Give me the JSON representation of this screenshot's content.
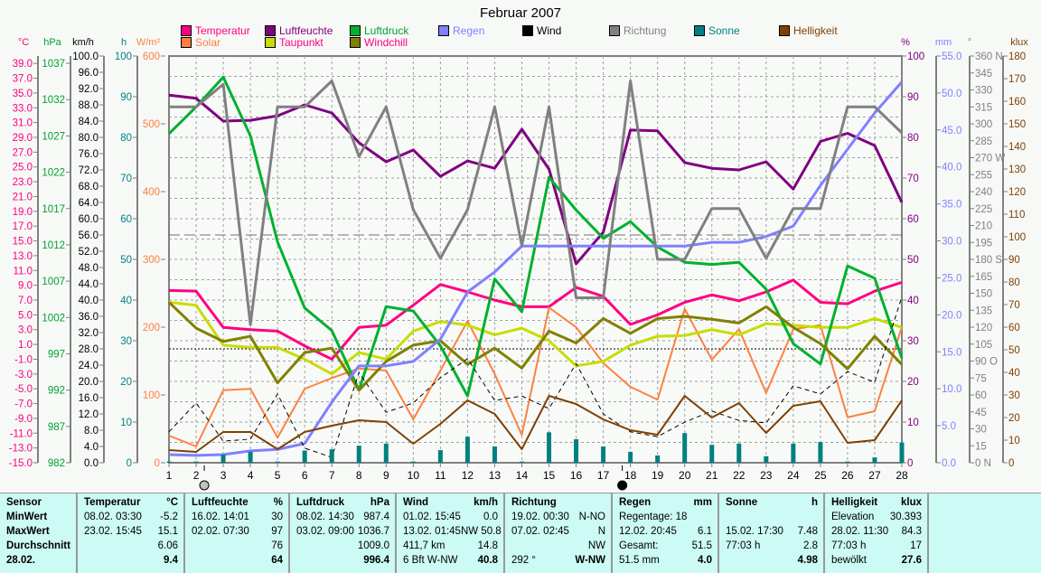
{
  "chart_data": {
    "type": "line",
    "title": "Februar 2007",
    "x": [
      1,
      2,
      3,
      4,
      5,
      6,
      7,
      8,
      9,
      10,
      11,
      12,
      13,
      14,
      15,
      16,
      17,
      18,
      19,
      20,
      21,
      22,
      23,
      24,
      25,
      26,
      27,
      28
    ],
    "axes": [
      {
        "id": "c",
        "unit": "°C",
        "color": "#ff0080",
        "range": [
          -15,
          40
        ],
        "ticks": [
          "39.0",
          "37.0",
          "35.0",
          "33.0",
          "31.0",
          "29.0",
          "27.0",
          "25.0",
          "23.0",
          "21.0",
          "19.0",
          "17.0",
          "15.0",
          "13.0",
          "11.0",
          "9.0",
          "7.0",
          "5.0",
          "3.0",
          "1.0",
          "-1.0",
          "-3.0",
          "-5.0",
          "-7.0",
          "-9.0",
          "-11.0",
          "-13.0",
          "-15.0"
        ]
      },
      {
        "id": "hpa",
        "unit": "hPa",
        "color": "#00a030",
        "range": [
          982,
          1038
        ],
        "ticks": [
          "1037",
          "1032",
          "1027",
          "1022",
          "1017",
          "1012",
          "1007",
          "1002",
          "997",
          "992",
          "987",
          "982"
        ]
      },
      {
        "id": "kmh",
        "unit": "km/h",
        "color": "#000000",
        "range": [
          0,
          100
        ],
        "ticks": [
          "100.0",
          "96.0",
          "92.0",
          "88.0",
          "84.0",
          "80.0",
          "76.0",
          "72.0",
          "68.0",
          "64.0",
          "60.0",
          "56.0",
          "52.0",
          "48.0",
          "44.0",
          "40.0",
          "36.0",
          "32.0",
          "28.0",
          "24.0",
          "20.0",
          "16.0",
          "12.0",
          "8.0",
          "4.0",
          "0.0"
        ]
      },
      {
        "id": "h",
        "unit": "h",
        "color": "#008080",
        "range": [
          0,
          100
        ],
        "ticks": [
          "100",
          "90",
          "80",
          "70",
          "60",
          "50",
          "40",
          "30",
          "20",
          "10",
          "0"
        ]
      },
      {
        "id": "wm",
        "unit": "W/m²",
        "color": "#ff8040",
        "range": [
          0,
          600
        ],
        "ticks": [
          "600",
          "500",
          "400",
          "300",
          "200",
          "100",
          "0"
        ]
      },
      {
        "id": "pct",
        "unit": "%",
        "color": "#800080",
        "range": [
          0,
          100
        ],
        "ticks": [
          "100",
          "90",
          "80",
          "70",
          "60",
          "50",
          "40",
          "30",
          "20",
          "10",
          "0"
        ]
      },
      {
        "id": "mm",
        "unit": "mm",
        "color": "#8080ff",
        "range": [
          0,
          55
        ],
        "ticks": [
          "55.0",
          "50.0",
          "45.0",
          "40.0",
          "35.0",
          "30.0",
          "25.0",
          "20.0",
          "15.0",
          "10.0",
          "5.0",
          "0.0"
        ]
      },
      {
        "id": "deg",
        "unit": "°",
        "color": "#808080",
        "range": [
          0,
          360
        ],
        "ticks": [
          "360 N",
          "345",
          "330",
          "315",
          "300",
          "285",
          "270 W",
          "255",
          "240",
          "225",
          "210",
          "195",
          "180 S",
          "165",
          "150",
          "135",
          "120",
          "105",
          "90 O",
          "75",
          "60",
          "45",
          "30",
          "15",
          "0 N"
        ]
      },
      {
        "id": "klux",
        "unit": "klux",
        "color": "#804000",
        "range": [
          0,
          180
        ],
        "ticks": [
          "180",
          "170",
          "160",
          "150",
          "140",
          "130",
          "120",
          "110",
          "100",
          "90",
          "80",
          "70",
          "60",
          "50",
          "40",
          "30",
          "20",
          "10",
          "0"
        ]
      }
    ],
    "series": [
      {
        "name": "Temperatur",
        "axis": "c",
        "color": "#ff0080",
        "width": 3,
        "values": [
          8.3,
          8.2,
          3.3,
          3.0,
          2.8,
          0.8,
          -1.0,
          3.3,
          3.6,
          6.3,
          9.1,
          8.1,
          7.0,
          6.1,
          6.1,
          8.7,
          7.5,
          3.7,
          5.0,
          6.7,
          7.7,
          6.9,
          8.1,
          9.7,
          6.7,
          6.5,
          8.2,
          9.4
        ]
      },
      {
        "name": "Solar",
        "axis": "wm",
        "color": "#ff8040",
        "width": 2,
        "values": [
          40,
          24,
          107,
          109,
          37,
          109,
          125,
          139,
          136,
          64,
          136,
          209,
          131,
          41,
          229,
          200,
          147,
          112,
          93,
          227,
          152,
          197,
          103,
          197,
          203,
          67,
          76,
          200
        ]
      },
      {
        "name": "Luftfeuchte",
        "axis": "pct",
        "color": "#800080",
        "width": 3,
        "values": [
          90.4,
          89.6,
          84,
          84.2,
          85.3,
          88,
          86,
          78.7,
          74,
          76.9,
          70.4,
          74.2,
          72.4,
          82,
          72.2,
          48.9,
          56.7,
          81.8,
          81.6,
          73.8,
          72.4,
          72,
          74,
          67.3,
          79,
          81,
          78,
          64
        ]
      },
      {
        "name": "Taupunkt",
        "axis": "c",
        "color": "#c8dc00",
        "width": 3,
        "values": [
          6.7,
          6.3,
          0.9,
          0.6,
          0.6,
          -1.0,
          -3.0,
          -0.1,
          -1.0,
          2.8,
          4.1,
          3.6,
          2.3,
          3.2,
          1.5,
          -1.9,
          -1.3,
          0.9,
          2.1,
          2.2,
          3.0,
          2.3,
          3.8,
          3.6,
          3.3,
          3.3,
          4.5,
          3.3
        ]
      },
      {
        "name": "Luftdruck",
        "axis": "hpa",
        "color": "#00b030",
        "width": 3,
        "values": [
          1027.3,
          1031,
          1035.1,
          1027,
          1012.4,
          1003.3,
          1000.2,
          992,
          1003.5,
          1002.9,
          998.1,
          991.2,
          1007.3,
          1002.8,
          1021.3,
          1016.8,
          1012.9,
          1015.2,
          1011.7,
          1009.6,
          1009.3,
          1009.6,
          1005.9,
          998.4,
          995.6,
          1009.1,
          1007.4,
          996.4
        ]
      },
      {
        "name": "Windchill",
        "axis": "c",
        "color": "#808000",
        "width": 3,
        "values": [
          6.7,
          3.2,
          1.4,
          2.1,
          -4.2,
          -0.1,
          0.5,
          -5.2,
          -1.3,
          0.9,
          1.5,
          -1.7,
          0.5,
          -2.2,
          2.8,
          1.2,
          4.5,
          2.5,
          4.5,
          4.8,
          4.4,
          3.9,
          6.1,
          3.3,
          1.1,
          -2.3,
          2.1,
          -1.7
        ]
      },
      {
        "name": "Regen",
        "axis": "mm",
        "color": "#8080ff",
        "width": 3,
        "values": [
          1.1,
          1.0,
          1.1,
          1.6,
          1.8,
          2.6,
          8.2,
          13.1,
          13.1,
          13.7,
          16.7,
          23.1,
          25.8,
          29.3,
          29.3,
          29.3,
          29.3,
          29.3,
          29.3,
          29.3,
          29.8,
          29.8,
          30.6,
          32,
          37.5,
          42.4,
          47.3,
          51.5
        ]
      },
      {
        "name": "Wind",
        "axis": "kmh",
        "color": "#000000",
        "width": 1,
        "dash": "5,4",
        "values": [
          7.6,
          14.7,
          5.3,
          5.8,
          16.9,
          3.6,
          1.3,
          22.2,
          12.4,
          14.7,
          20.9,
          25.6,
          15.3,
          16.4,
          13.3,
          24.4,
          12,
          7.6,
          6.4,
          10,
          12.7,
          10.4,
          9.8,
          18.9,
          16.9,
          22.4,
          19.8,
          40.8
        ]
      },
      {
        "name": "Richtung",
        "axis": "deg",
        "color": "#808080",
        "width": 3,
        "values": [
          315,
          315,
          335,
          122,
          315,
          315,
          338,
          271,
          315,
          224,
          181,
          224,
          315,
          192,
          315,
          146,
          146,
          338,
          180,
          180,
          225,
          225,
          181,
          225,
          225,
          315,
          315,
          292
        ]
      },
      {
        "name": "Sonne",
        "axis": "h",
        "color": "#008080",
        "bar": true,
        "values": [
          0.3,
          0.3,
          2,
          2.7,
          0.3,
          3,
          3.3,
          4.2,
          4.7,
          0.3,
          3.1,
          6.4,
          4,
          0.3,
          7.48,
          5.8,
          4,
          2.7,
          1.8,
          7.3,
          4.4,
          4.7,
          1.6,
          4.7,
          5.1,
          0.3,
          1.3,
          5
        ]
      },
      {
        "name": "Helligkeit",
        "axis": "klux",
        "color": "#804000",
        "width": 2,
        "values": [
          5.6,
          4.8,
          13.6,
          13.6,
          6,
          13.6,
          16.4,
          18.8,
          18,
          8.4,
          17.2,
          27.6,
          21.6,
          6,
          29.6,
          26,
          19.2,
          14.4,
          12.4,
          29.6,
          20,
          26.4,
          13.2,
          25.2,
          27.2,
          8.8,
          10,
          27.6
        ]
      }
    ],
    "reference_lines": [
      {
        "axis": "pct",
        "value": 56,
        "style": "long-dash"
      },
      {
        "axis": "pct",
        "value": 28,
        "style": "dotted"
      }
    ],
    "moon_phases": [
      {
        "day": 2.3,
        "phase": "full"
      },
      {
        "day": 17.7,
        "phase": "new"
      }
    ],
    "grid": true
  },
  "legend": [
    {
      "label": "Temperatur",
      "color": "#ff0080",
      "text": "#ff0080"
    },
    {
      "label": "Solar",
      "color": "#ff8040",
      "text": "#ff8040"
    },
    {
      "label": "Luftfeuchte",
      "color": "#800080",
      "text": "#800080"
    },
    {
      "label": "Taupunkt",
      "color": "#c8dc00",
      "text": "#ff0080"
    },
    {
      "label": "Luftdruck",
      "color": "#00b030",
      "text": "#00a030"
    },
    {
      "label": "Windchill",
      "color": "#808000",
      "text": "#ff0080"
    },
    {
      "label": "Regen",
      "color": "#8080ff",
      "text": "#8080ff"
    },
    {
      "label": "Wind",
      "color": "#000000",
      "text": "#000000"
    },
    {
      "label": "Richtung",
      "color": "#808080",
      "text": "#808080"
    },
    {
      "label": "Sonne",
      "color": "#008080",
      "text": "#008080"
    },
    {
      "label": "Helligkeit",
      "color": "#804000",
      "text": "#804000"
    }
  ],
  "table": {
    "sensor": [
      "Sensor",
      "MinWert",
      "MaxWert",
      "Durchschnitt",
      "28.02."
    ],
    "columns": [
      {
        "title": "Temperatur",
        "unit": "°C",
        "rows": [
          [
            "08.02.  03:30",
            "-5.2"
          ],
          [
            "23.02.  15:45",
            "15.1"
          ],
          [
            "",
            "6.06"
          ],
          [
            "",
            "9.4"
          ]
        ]
      },
      {
        "title": "Luftfeuchte",
        "unit": "%",
        "rows": [
          [
            "16.02.  14:01",
            "30"
          ],
          [
            "02.02.  07:30",
            "97"
          ],
          [
            "",
            "76"
          ],
          [
            "",
            "64"
          ]
        ]
      },
      {
        "title": "Luftdruck",
        "unit": "hPa",
        "rows": [
          [
            "08.02.  14:30",
            "987.4"
          ],
          [
            "03.02.  09:00",
            "1036.7"
          ],
          [
            "",
            "1009.0"
          ],
          [
            "",
            "996.4"
          ]
        ]
      },
      {
        "title": "Wind",
        "unit": "km/h",
        "rows": [
          [
            "01.02.  15:45",
            "0.0"
          ],
          [
            "13.02.  01:45",
            "NW 50.8"
          ],
          [
            "411,7 km",
            "14.8"
          ],
          [
            "6 Bft W-NW",
            "40.8"
          ]
        ]
      },
      {
        "title": "Richtung",
        "unit": "",
        "rows": [
          [
            "19.02.  00:30",
            "N-NO"
          ],
          [
            "07.02.  02:45",
            "N"
          ],
          [
            "",
            "NW"
          ],
          [
            "292 °",
            "W-NW"
          ]
        ]
      },
      {
        "title": "Regen",
        "unit": "mm",
        "rows": [
          [
            "Regentage: 18",
            ""
          ],
          [
            "12.02.  20:45",
            "6.1"
          ],
          [
            "Gesamt:",
            "51.5"
          ],
          [
            "51.5 mm",
            "4.0"
          ]
        ]
      },
      {
        "title": "Sonne",
        "unit": "h",
        "rows": [
          [
            "",
            ""
          ],
          [
            "15.02.  17:30",
            "7.48"
          ],
          [
            "77:03 h",
            "2.8"
          ],
          [
            "",
            "4.98"
          ]
        ]
      },
      {
        "title": "Helligkeit",
        "unit": "klux",
        "rows": [
          [
            "Elevation",
            "30.393"
          ],
          [
            "28.02.  11:30",
            "84.3"
          ],
          [
            "77:03 h",
            "17"
          ],
          [
            "bewölkt",
            "27.6"
          ]
        ]
      }
    ]
  }
}
